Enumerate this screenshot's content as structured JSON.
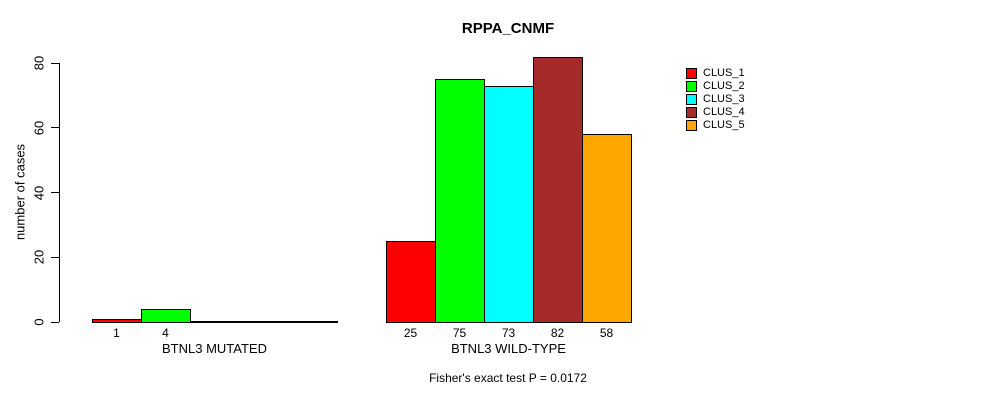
{
  "title": "RPPA_CNMF",
  "chart_data": {
    "type": "bar",
    "title": "RPPA_CNMF",
    "xlabel": "",
    "ylabel": "number of cases",
    "ylim": [
      0,
      80
    ],
    "yticks": [
      0,
      20,
      40,
      60,
      80
    ],
    "grid": false,
    "legend_position": "top-right",
    "bar_border_color": "#000000",
    "series": [
      {
        "name": "CLUS_1",
        "color": "#FF0000"
      },
      {
        "name": "CLUS_2",
        "color": "#00FF00"
      },
      {
        "name": "CLUS_3",
        "color": "#00FFFF"
      },
      {
        "name": "CLUS_4",
        "color": "#A52A2A"
      },
      {
        "name": "CLUS_5",
        "color": "#FFA500"
      }
    ],
    "groups": [
      {
        "label": "BTNL3 MUTATED",
        "values": [
          1,
          4,
          0,
          0,
          0
        ],
        "bar_labels": [
          "1",
          "4",
          "",
          "",
          ""
        ]
      },
      {
        "label": "BTNL3 WILD-TYPE",
        "values": [
          25,
          75,
          73,
          82,
          58
        ],
        "bar_labels": [
          "25",
          "75",
          "73",
          "82",
          "58"
        ]
      }
    ],
    "annotation": "Fisher's exact test P = 0.0172"
  }
}
